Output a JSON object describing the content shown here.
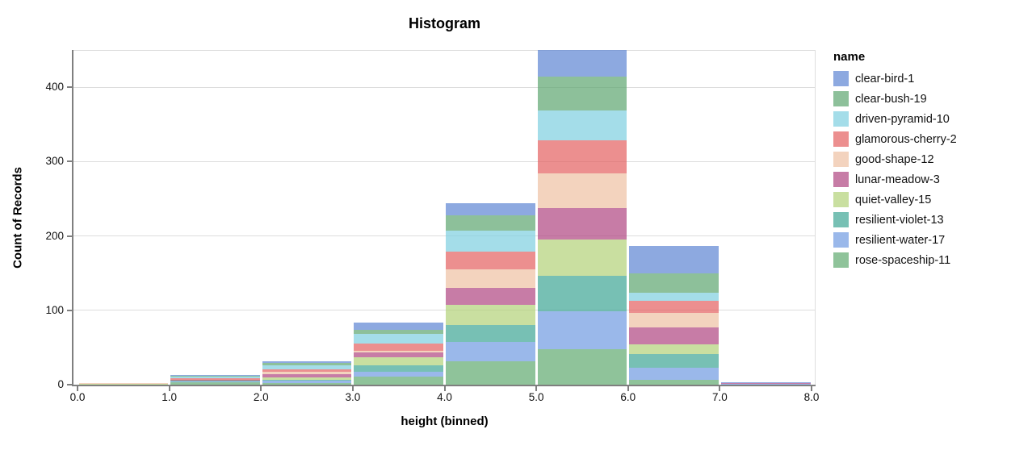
{
  "title": "Histogram",
  "x_axis": {
    "title": "height (binned)",
    "tick_labels": [
      "0.0",
      "1.0",
      "2.0",
      "3.0",
      "4.0",
      "5.0",
      "6.0",
      "7.0",
      "8.0"
    ],
    "tick_values": [
      0,
      1,
      2,
      3,
      4,
      5,
      6,
      7,
      8
    ]
  },
  "y_axis": {
    "title": "Count of Records",
    "tick_labels": [
      "0",
      "100",
      "200",
      "300",
      "400"
    ],
    "tick_values": [
      0,
      100,
      200,
      300,
      400
    ],
    "max": 450
  },
  "legend": {
    "title": "name",
    "position": "right"
  },
  "colors": {
    "background": "#ffffff",
    "gridline": "#dddddd",
    "view_border": "#dddddd",
    "axis_line": "#7f7f7f",
    "label_text": "#111111",
    "title_text": "#000000"
  },
  "chart_data": {
    "type": "bar",
    "subtype": "stacked-histogram",
    "title": "Histogram",
    "xlabel": "height (binned)",
    "ylabel": "Count of Records",
    "xlim": [
      0,
      8
    ],
    "ylim": [
      0,
      450
    ],
    "grid": true,
    "legend_position": "right",
    "fill_opacity": 0.7,
    "bin_edges": [
      0,
      1,
      2,
      3,
      4,
      5,
      6,
      7,
      8
    ],
    "stack_order": "first listed series renders on top of stack",
    "series": [
      {
        "name": "clear-bird-1",
        "color": "#5c84d3",
        "values": [
          0,
          1,
          3,
          9,
          16,
          36,
          36,
          1
        ]
      },
      {
        "name": "clear-bush-19",
        "color": "#5ca56f",
        "values": [
          0,
          1,
          3,
          6,
          21,
          45,
          26,
          0
        ]
      },
      {
        "name": "driven-pyramid-10",
        "color": "#7ecee0",
        "values": [
          0,
          2,
          5,
          13,
          28,
          40,
          11,
          0
        ]
      },
      {
        "name": "glamorous-cherry-2",
        "color": "#e46060",
        "values": [
          0,
          2,
          4,
          9,
          24,
          45,
          16,
          0
        ]
      },
      {
        "name": "good-shape-12",
        "color": "#eec0a2",
        "values": [
          1,
          0,
          3,
          3,
          25,
          47,
          20,
          0
        ]
      },
      {
        "name": "lunar-meadow-3",
        "color": "#af4480",
        "values": [
          0,
          1,
          4,
          6,
          23,
          42,
          23,
          1
        ]
      },
      {
        "name": "quiet-valley-15",
        "color": "#b2d177",
        "values": [
          1,
          1,
          3,
          11,
          27,
          49,
          13,
          0
        ]
      },
      {
        "name": "resilient-violet-13",
        "color": "#3da594",
        "values": [
          0,
          1,
          2,
          9,
          23,
          47,
          18,
          0
        ]
      },
      {
        "name": "resilient-water-17",
        "color": "#6f9ae1",
        "values": [
          0,
          1,
          3,
          6,
          25,
          51,
          17,
          1
        ]
      },
      {
        "name": "rose-spaceship-11",
        "color": "#60a96f",
        "values": [
          0,
          3,
          2,
          11,
          32,
          48,
          6,
          0
        ]
      }
    ],
    "bin_totals": [
      2,
      13,
      32,
      83,
      244,
      450,
      186,
      3
    ]
  }
}
